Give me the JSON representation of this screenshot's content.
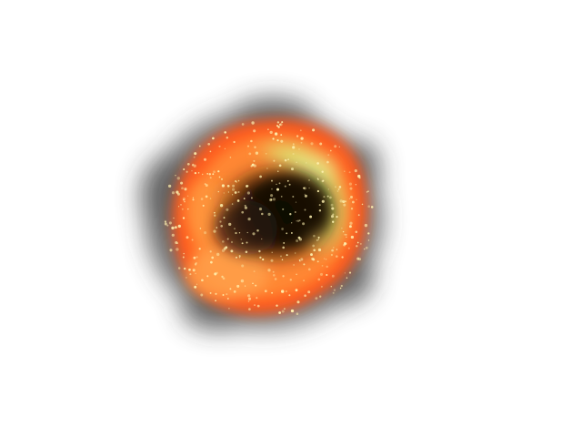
{
  "scene": {
    "subject": "explosion-burst",
    "background_color": "#ffffff",
    "colors": {
      "smoke": "#2f2f2f",
      "outer_glow": "#ff5a1f",
      "fire": "#ff7a2a",
      "hot_orange": "#ffa24a",
      "yellow_green": "#d9f07a",
      "core_dark": "#1a1208",
      "spark": "#fff2b0"
    }
  }
}
